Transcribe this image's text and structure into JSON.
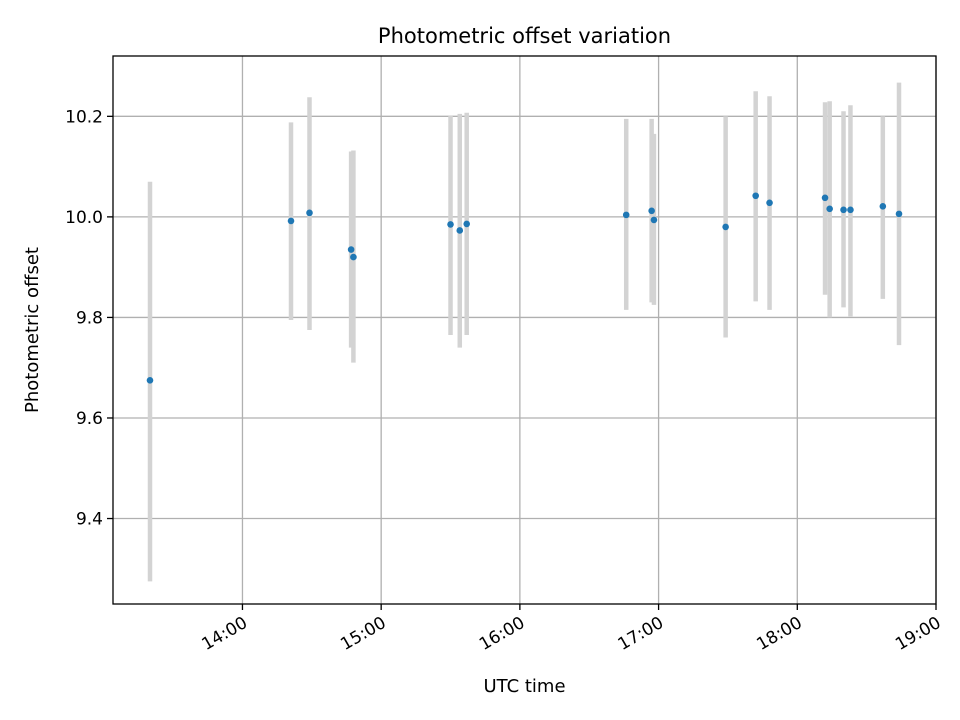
{
  "chart_data": {
    "type": "scatter",
    "title": "Photometric offset variation",
    "xlabel": "UTC time",
    "ylabel": "Photometric offset",
    "x_unit": "UTC",
    "xlim": [
      "13:04",
      "19:00"
    ],
    "ylim": [
      9.23,
      10.32
    ],
    "grid": true,
    "marker_color": "#1f77b4",
    "errorbar_color": "#d3d3d3",
    "x_ticks": [
      "14:00",
      "15:00",
      "16:00",
      "17:00",
      "18:00",
      "19:00"
    ],
    "y_ticks": [
      "9.4",
      "9.6",
      "9.8",
      "10.0",
      "10.2"
    ],
    "points": [
      {
        "t": "13:20",
        "y": 9.675,
        "ylo": 9.275,
        "yhi": 10.07
      },
      {
        "t": "14:21",
        "y": 9.992,
        "ylo": 9.795,
        "yhi": 10.188
      },
      {
        "t": "14:29",
        "y": 10.008,
        "ylo": 9.775,
        "yhi": 10.238
      },
      {
        "t": "14:47",
        "y": 9.935,
        "ylo": 9.74,
        "yhi": 10.13
      },
      {
        "t": "14:48",
        "y": 9.92,
        "ylo": 9.71,
        "yhi": 10.132
      },
      {
        "t": "15:30",
        "y": 9.985,
        "ylo": 9.765,
        "yhi": 10.202
      },
      {
        "t": "15:34",
        "y": 9.973,
        "ylo": 9.74,
        "yhi": 10.205
      },
      {
        "t": "15:37",
        "y": 9.986,
        "ylo": 9.765,
        "yhi": 10.207
      },
      {
        "t": "16:46",
        "y": 10.004,
        "ylo": 9.815,
        "yhi": 10.195
      },
      {
        "t": "16:57",
        "y": 10.012,
        "ylo": 9.83,
        "yhi": 10.195
      },
      {
        "t": "16:58",
        "y": 9.994,
        "ylo": 9.825,
        "yhi": 10.165
      },
      {
        "t": "17:29",
        "y": 9.98,
        "ylo": 9.76,
        "yhi": 10.2
      },
      {
        "t": "17:42",
        "y": 10.042,
        "ylo": 9.832,
        "yhi": 10.25
      },
      {
        "t": "17:48",
        "y": 10.028,
        "ylo": 9.815,
        "yhi": 10.24
      },
      {
        "t": "18:12",
        "y": 10.038,
        "ylo": 9.845,
        "yhi": 10.228
      },
      {
        "t": "18:14",
        "y": 10.016,
        "ylo": 9.8,
        "yhi": 10.23
      },
      {
        "t": "18:20",
        "y": 10.014,
        "ylo": 9.82,
        "yhi": 10.21
      },
      {
        "t": "18:23",
        "y": 10.014,
        "ylo": 9.802,
        "yhi": 10.222
      },
      {
        "t": "18:37",
        "y": 10.021,
        "ylo": 9.837,
        "yhi": 10.2
      },
      {
        "t": "18:44",
        "y": 10.006,
        "ylo": 9.745,
        "yhi": 10.267
      }
    ]
  }
}
